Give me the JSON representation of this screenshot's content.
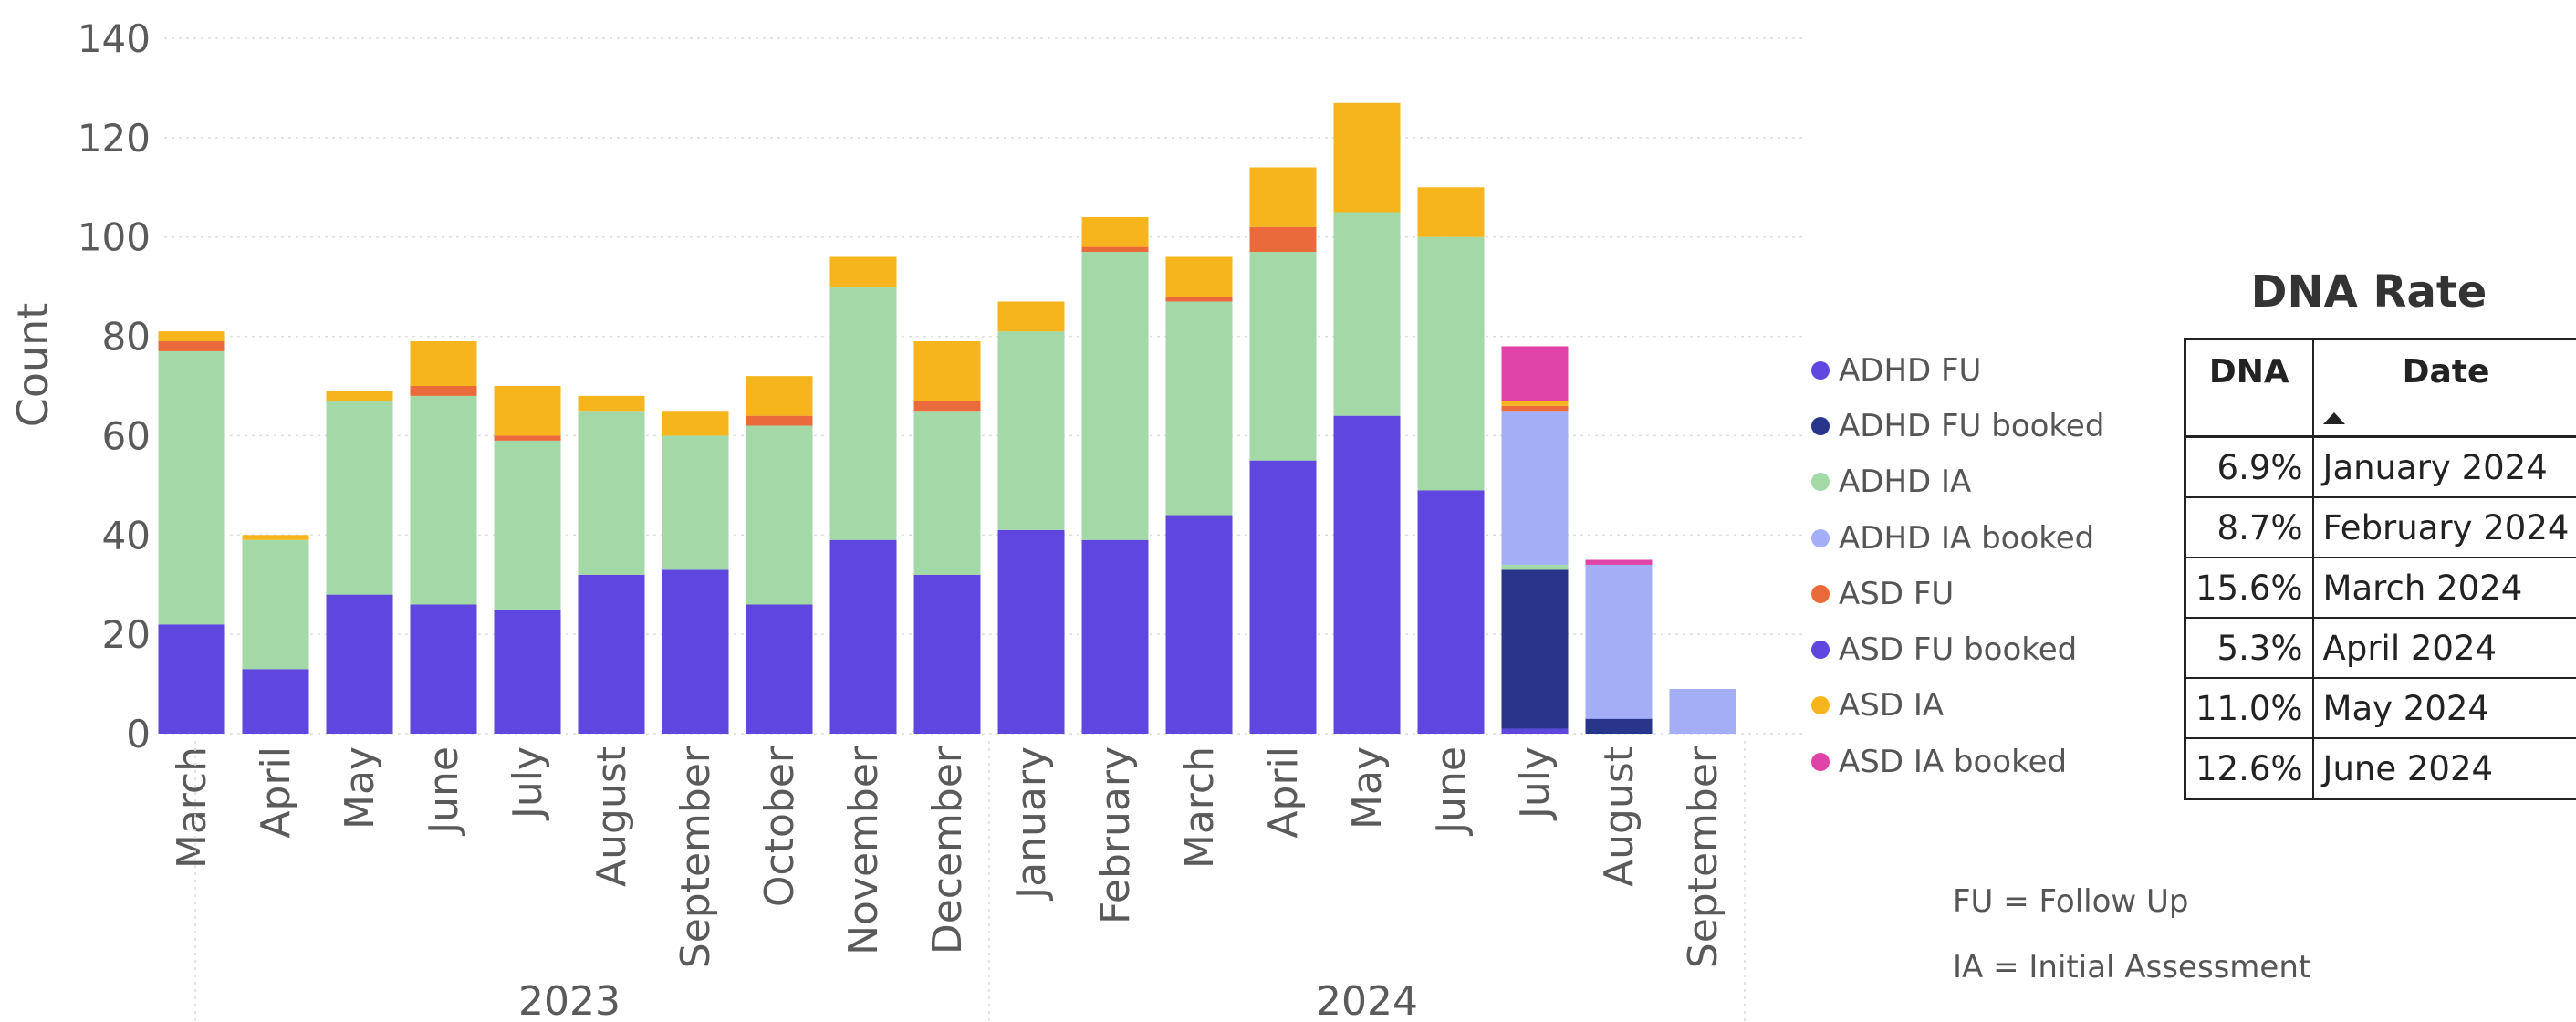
{
  "chart_data": {
    "type": "bar",
    "stacked": true,
    "ylabel": "Count",
    "ylim": [
      0,
      140
    ],
    "yticks": [
      0,
      20,
      40,
      60,
      80,
      100,
      120,
      140
    ],
    "grid": true,
    "legend_position": "right",
    "categories": [
      "March",
      "April",
      "May",
      "June",
      "July",
      "August",
      "September",
      "October",
      "November",
      "December",
      "January",
      "February",
      "March",
      "April",
      "May",
      "June",
      "July",
      "August",
      "September"
    ],
    "groups": [
      {
        "label": "2023",
        "start": 0,
        "end": 9
      },
      {
        "label": "2024",
        "start": 10,
        "end": 18
      }
    ],
    "series": [
      {
        "name": "ADHD FU",
        "color": "#5E46DF",
        "values": [
          0,
          0,
          0,
          0,
          0,
          0,
          0,
          0,
          0,
          0,
          0,
          0,
          0,
          0,
          0,
          0,
          1,
          0,
          0
        ]
      },
      {
        "name": "ADHD FU booked",
        "color": "#27368A",
        "values": [
          0,
          0,
          0,
          0,
          0,
          0,
          0,
          0,
          0,
          0,
          0,
          0,
          0,
          0,
          0,
          0,
          32,
          3,
          0
        ]
      },
      {
        "name": "ADHD IA",
        "color": "#A3D9A6",
        "values": [
          55,
          26,
          39,
          42,
          34,
          33,
          27,
          36,
          51,
          33,
          40,
          58,
          43,
          42,
          41,
          51,
          1,
          0,
          0
        ]
      },
      {
        "name": "ADHD IA booked",
        "color": "#A3AEF7",
        "values": [
          0,
          0,
          0,
          0,
          0,
          0,
          0,
          0,
          0,
          0,
          0,
          0,
          0,
          0,
          0,
          0,
          31,
          31,
          9
        ]
      },
      {
        "name": "ASD FU",
        "color": "#EB6A3B",
        "values": [
          2,
          0,
          0,
          2,
          1,
          0,
          0,
          2,
          0,
          2,
          0,
          1,
          1,
          5,
          0,
          0,
          1,
          0,
          0
        ]
      },
      {
        "name": "ASD FU booked",
        "color": "#5E46DF",
        "values": [
          22,
          13,
          28,
          26,
          25,
          32,
          33,
          26,
          39,
          32,
          41,
          39,
          44,
          55,
          64,
          49,
          0,
          0,
          0
        ]
      },
      {
        "name": "ASD IA",
        "color": "#F7B51D",
        "values": [
          2,
          1,
          2,
          9,
          10,
          3,
          5,
          8,
          6,
          12,
          6,
          6,
          8,
          12,
          22,
          10,
          1,
          0,
          0
        ]
      },
      {
        "name": "ASD IA booked",
        "color": "#E043A8",
        "values": [
          0,
          0,
          0,
          0,
          0,
          0,
          0,
          0,
          0,
          0,
          0,
          0,
          0,
          0,
          0,
          0,
          11,
          1,
          0
        ]
      }
    ],
    "stack_order": [
      "ADHD FU",
      "ASD FU booked",
      "ADHD FU booked",
      "ADHD IA",
      "ADHD IA booked",
      "ASD FU",
      "ASD IA",
      "ASD IA booked"
    ]
  },
  "dna_table": {
    "title": "DNA Rate",
    "headers": {
      "dna": "DNA",
      "date": "Date"
    },
    "rows": [
      {
        "dna": "6.9%",
        "date": "January 2024"
      },
      {
        "dna": "8.7%",
        "date": "February 2024"
      },
      {
        "dna": "15.6%",
        "date": "March 2024"
      },
      {
        "dna": "5.3%",
        "date": "April 2024"
      },
      {
        "dna": "11.0%",
        "date": "May 2024"
      },
      {
        "dna": "12.6%",
        "date": "June 2024"
      }
    ]
  },
  "notes": {
    "fu": "FU = Follow Up",
    "ia": "IA = Initial Assessment"
  }
}
